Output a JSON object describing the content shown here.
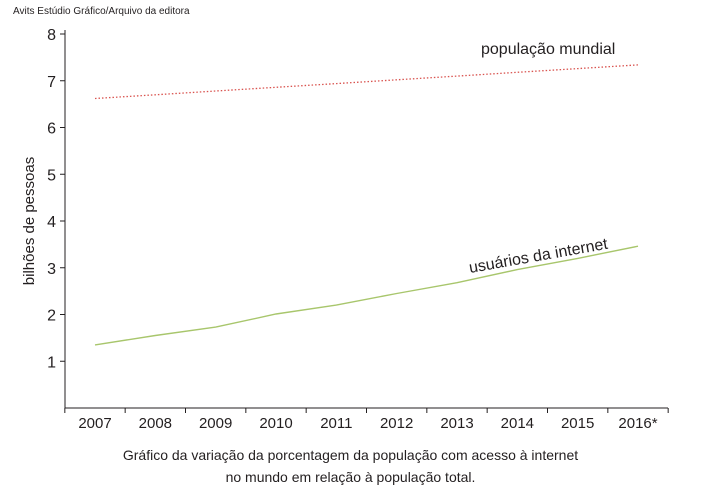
{
  "credit": "Avits Estúdio Gráfico/Arquivo da editora",
  "caption": {
    "line1": "Gráfico da variação da porcentagem da população com acesso à internet",
    "line2": "no mundo em relação à população total."
  },
  "chart_data": {
    "type": "line",
    "ylabel": "bilhões de pessoas",
    "xlabel": "",
    "ylim": [
      0,
      8
    ],
    "yticks": [
      1,
      2,
      3,
      4,
      5,
      6,
      7,
      8
    ],
    "categories": [
      "2007",
      "2008",
      "2009",
      "2010",
      "2011",
      "2012",
      "2013",
      "2014",
      "2015",
      "2016*"
    ],
    "grid": false,
    "series": [
      {
        "name": "população mundial",
        "values": [
          6.62,
          6.7,
          6.78,
          6.86,
          6.94,
          7.02,
          7.1,
          7.18,
          7.26,
          7.34
        ],
        "color": "#d9534f",
        "style": "dotted"
      },
      {
        "name": "usuários da internet",
        "values": [
          1.35,
          1.55,
          1.73,
          2.01,
          2.2,
          2.45,
          2.68,
          2.96,
          3.2,
          3.46
        ],
        "color": "#a8c66c",
        "style": "solid"
      }
    ]
  }
}
